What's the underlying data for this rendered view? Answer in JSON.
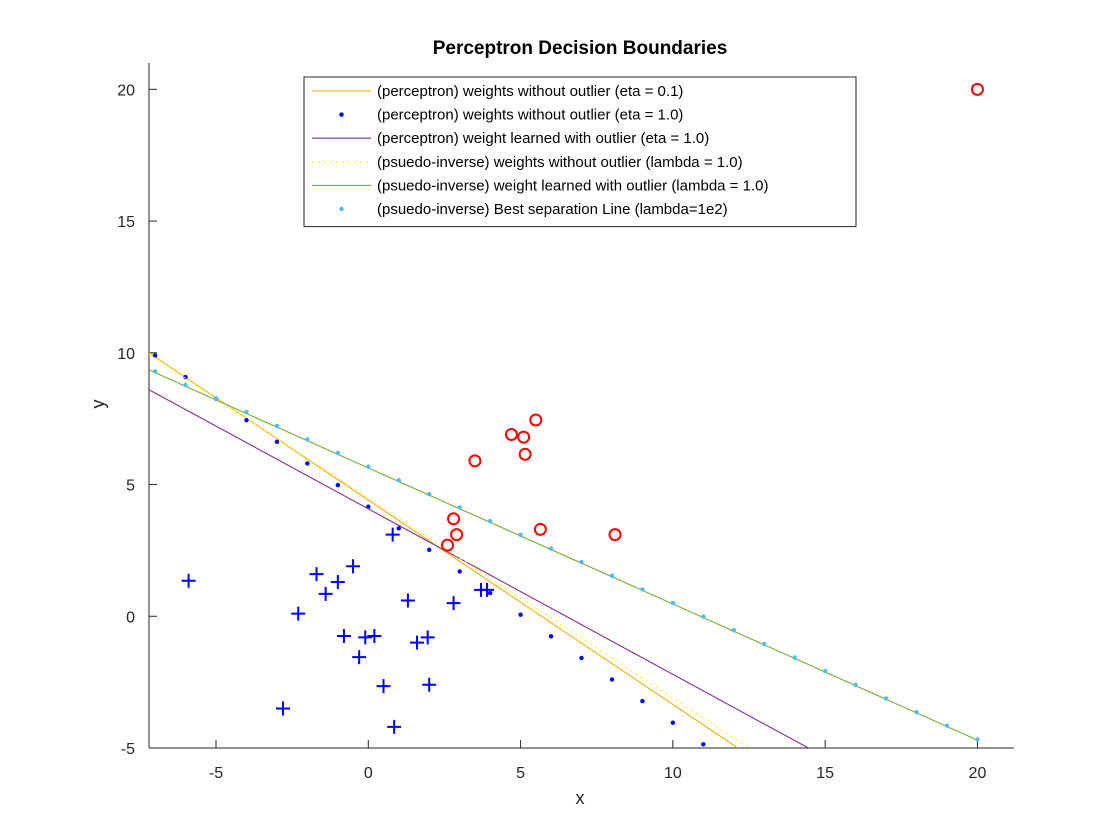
{
  "chart_data": {
    "type": "scatter",
    "title": "Perceptron Decision Boundaries",
    "xlabel": "x",
    "ylabel": "y",
    "xlim": [
      -7.2,
      21.2
    ],
    "ylim": [
      -5,
      21
    ],
    "xticks": [
      -5,
      0,
      5,
      10,
      15,
      20
    ],
    "yticks": [
      -5,
      0,
      5,
      10,
      15,
      20
    ],
    "grid": false,
    "legend_position": "top-center",
    "point_series": [
      {
        "marker": "plus",
        "color": "#0000ff",
        "points": [
          [
            -5.9,
            1.35
          ],
          [
            -2.8,
            -3.5
          ],
          [
            -2.3,
            0.1
          ],
          [
            -1.7,
            1.6
          ],
          [
            -1.4,
            0.85
          ],
          [
            -1.0,
            1.3
          ],
          [
            -0.8,
            -0.75
          ],
          [
            -0.5,
            1.9
          ],
          [
            -0.3,
            -1.55
          ],
          [
            -0.1,
            -0.8
          ],
          [
            0.2,
            -0.75
          ],
          [
            0.5,
            -2.65
          ],
          [
            0.8,
            3.1
          ],
          [
            0.85,
            -4.2
          ],
          [
            1.3,
            0.6
          ],
          [
            1.6,
            -1.0
          ],
          [
            1.95,
            -0.8
          ],
          [
            2.0,
            -2.6
          ],
          [
            2.8,
            0.5
          ],
          [
            3.7,
            1.0
          ],
          [
            3.9,
            1.0
          ]
        ]
      },
      {
        "marker": "circle",
        "color": "#ff0000",
        "points": [
          [
            2.6,
            2.7
          ],
          [
            2.8,
            3.7
          ],
          [
            2.9,
            3.1
          ],
          [
            3.5,
            5.9
          ],
          [
            4.7,
            6.9
          ],
          [
            5.1,
            6.8
          ],
          [
            5.15,
            6.15
          ],
          [
            5.5,
            7.45
          ],
          [
            5.65,
            3.3
          ],
          [
            8.1,
            3.1
          ],
          [
            20.0,
            20.0
          ]
        ]
      }
    ],
    "line_series": [
      {
        "name": "(perceptron) weights without outlier (eta = 0.1)",
        "color": "#edb120",
        "style": "solid",
        "x": [
          -7.2,
          12.13
        ],
        "y": [
          10.0,
          -5.0
        ]
      },
      {
        "name": "(perceptron) weights without outlier (eta = 1.0)",
        "color": "#0000ff",
        "style": "dots",
        "x": [
          -7,
          -6,
          -5,
          -4,
          -3,
          -2,
          -1,
          0,
          1,
          2,
          3,
          4,
          5,
          6,
          7,
          8,
          9,
          10,
          11
        ],
        "y": [
          9.9,
          9.08,
          8.26,
          7.44,
          6.62,
          5.8,
          4.98,
          4.16,
          3.34,
          2.52,
          1.7,
          0.88,
          0.06,
          -0.76,
          -1.58,
          -2.4,
          -3.22,
          -4.04,
          -4.86
        ]
      },
      {
        "name": "(perceptron) weight learned with outlier (eta = 1.0)",
        "color": "#7e2f8e",
        "style": "solid",
        "x": [
          -7.2,
          14.45
        ],
        "y": [
          8.6,
          -5.0
        ]
      },
      {
        "name": "(psuedo-inverse) weights without outlier (lambda = 1.0)",
        "color": "#ffff00",
        "style": "dotted",
        "x": [
          -7.2,
          12.5
        ],
        "y": [
          9.95,
          -5.0
        ]
      },
      {
        "name": "(psuedo-inverse) weight learned with outlier (lambda = 1.0)",
        "color": "#77ac30",
        "style": "solid",
        "x": [
          -7.2,
          20.0
        ],
        "y": [
          9.35,
          -4.7
        ]
      },
      {
        "name": "(psuedo-inverse) Best separation Line (lambda=1e2)",
        "color": "#4dbeee",
        "style": "dots",
        "x": [
          -7,
          -6,
          -5,
          -4,
          -3,
          -2,
          -1,
          0,
          1,
          2,
          3,
          4,
          5,
          6,
          7,
          8,
          9,
          10,
          11,
          12,
          13,
          14,
          15,
          16,
          17,
          18,
          19,
          20
        ],
        "y": [
          9.3,
          8.78,
          8.27,
          7.75,
          7.23,
          6.71,
          6.2,
          5.68,
          5.16,
          4.64,
          4.13,
          3.61,
          3.09,
          2.57,
          2.06,
          1.54,
          1.02,
          0.5,
          -0.01,
          -0.53,
          -1.05,
          -1.57,
          -2.08,
          -2.6,
          -3.12,
          -3.64,
          -4.15,
          -4.67
        ]
      }
    ]
  }
}
